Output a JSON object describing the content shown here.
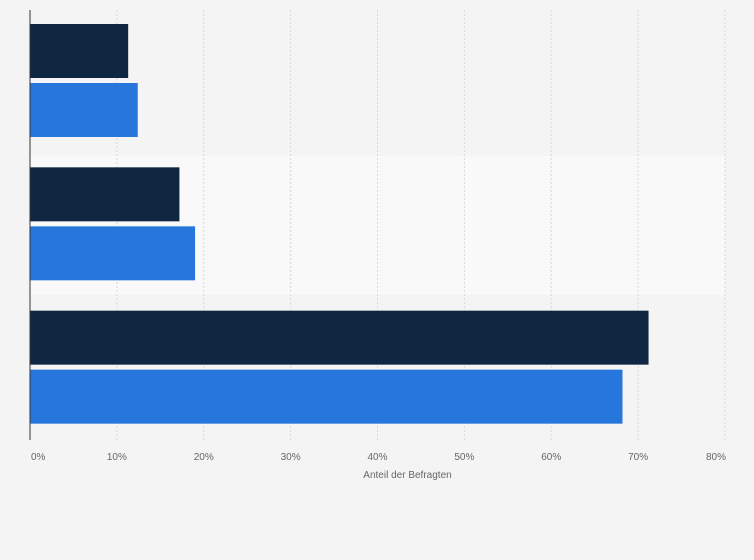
{
  "chart_data": {
    "type": "bar",
    "orientation": "horizontal",
    "title": "",
    "xlabel": "Anteil der Befragten",
    "ylabel": "",
    "xlim": [
      0,
      80
    ],
    "x_ticks": [
      "0%",
      "10%",
      "20%",
      "30%",
      "40%",
      "50%",
      "60%",
      "70%",
      "80%"
    ],
    "grid": true,
    "legend": "none",
    "categories": [
      "",
      "",
      ""
    ],
    "series": [
      {
        "color": "#0f2740",
        "values": [
          11.3,
          17.2,
          71.2
        ]
      },
      {
        "color": "#2776dc",
        "values": [
          12.4,
          19.0,
          68.2
        ]
      }
    ]
  },
  "colors": {
    "background": "#f4f4f4",
    "band_highlight": "#f9f9fa",
    "grid": "#d8d8d8",
    "axis": "#333333"
  }
}
